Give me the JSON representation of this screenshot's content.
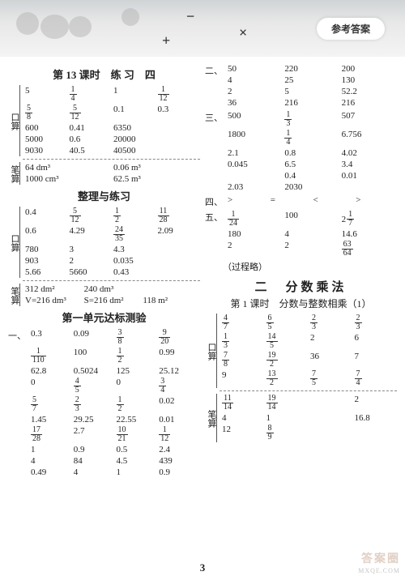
{
  "banner": {
    "pill": "参考答案",
    "ops": [
      "−",
      "+",
      "×",
      "÷"
    ]
  },
  "pagenum": "3",
  "watermark": "答案圈",
  "wm2": "MXQE.COM",
  "left": {
    "h1": "第 13 课时　练 习　四",
    "kou1": {
      "label": "口算",
      "rows": [
        [
          "5",
          "1/4",
          "1",
          "1/12"
        ],
        [
          "5/8",
          "5/12",
          "0.1",
          "0.3"
        ],
        [
          "600",
          "0.41",
          "6350",
          ""
        ],
        [
          "5000",
          "0.6",
          "20000",
          ""
        ],
        [
          "9030",
          "40.5",
          "40500",
          ""
        ]
      ]
    },
    "bi1": {
      "label": "笔算",
      "rows": [
        [
          "64 dm³",
          "0.06 m³"
        ],
        [
          "1000 cm³",
          "62.5 m³"
        ]
      ]
    },
    "h2": "整理与练习",
    "kou2": {
      "label": "口算",
      "rows": [
        [
          "0.4",
          "5/12",
          "1/2",
          "11/28"
        ],
        [
          "0.6",
          "4.29",
          "24/35",
          "2.09"
        ],
        [
          "780",
          "3",
          "4.3",
          ""
        ],
        [
          "903",
          "2",
          "0.035",
          ""
        ],
        [
          "5.66",
          "5660",
          "0.43",
          ""
        ]
      ]
    },
    "bi2": {
      "label": "笔算",
      "rows": [
        [
          "312 dm²",
          "240 dm³",
          ""
        ],
        [
          "V=216 dm³",
          "S=216 dm²",
          "118 m²"
        ]
      ]
    },
    "h3": "第一单元达标测验",
    "sec1": {
      "num": "一、",
      "rows": [
        [
          "0.3",
          "0.09",
          "3/8",
          "9/20"
        ],
        [
          "1/110",
          "100",
          "1/2",
          "0.99"
        ],
        [
          "62.8",
          "0.5024",
          "125",
          "25.12"
        ],
        [
          "0",
          "4/5",
          "0",
          "3/4"
        ],
        [
          "5/7",
          "2/3",
          "1/2",
          "0.02"
        ],
        [
          "1.45",
          "29.25",
          "22.55",
          "0.01"
        ],
        [
          "17/28",
          "2.7",
          "10/21",
          "1/12"
        ],
        [
          "1",
          "0.9",
          "0.5",
          "2.4"
        ],
        [
          "4",
          "84",
          "4.5",
          "439"
        ],
        [
          "0.49",
          "4",
          "1",
          "0.9"
        ]
      ]
    }
  },
  "right": {
    "sec2": {
      "num": "二、",
      "rows": [
        [
          "50",
          "220",
          "200"
        ],
        [
          "4",
          "25",
          "130"
        ],
        [
          "2",
          "5",
          "52.2"
        ],
        [
          "36",
          "216",
          "216"
        ]
      ]
    },
    "sec3": {
      "num": "三、",
      "rows": [
        [
          "500",
          "1/3",
          "507"
        ],
        [
          "1800",
          "1/4",
          "6.756"
        ],
        [
          "2.1",
          "0.8",
          "4.02"
        ],
        [
          "0.045",
          "6.5",
          "3.4"
        ],
        [
          "",
          "0.4",
          "0.01"
        ],
        [
          "2.03",
          "2030",
          ""
        ]
      ]
    },
    "sec4": {
      "num": "四、",
      "rows": [
        [
          ">",
          "=",
          "<",
          ">"
        ]
      ]
    },
    "sec5": {
      "num": "五、",
      "rows": [
        [
          "1/24",
          "100",
          "2 1/7"
        ],
        [
          "180",
          "4",
          "14.6"
        ],
        [
          "2",
          "2",
          "63/64"
        ]
      ],
      "note": "（过程略）"
    },
    "bigh": "二　分数乘法",
    "sub": "第 1 课时　分数与整数相乘（1）",
    "kou": {
      "label": "口算",
      "rows": [
        [
          "4/7",
          "6/5",
          "2/3",
          "2/3"
        ],
        [
          "1/3",
          "14/5",
          "2",
          "6"
        ],
        [
          "7/8",
          "19/2",
          "36",
          "7"
        ],
        [
          "9",
          "13/2",
          "7/5",
          "7/4"
        ]
      ]
    },
    "bi": {
      "label": "笔算",
      "rows": [
        [
          "11/14",
          "19/14",
          "",
          "2"
        ],
        [
          "4",
          "1",
          "",
          "16.8"
        ],
        [
          "12",
          "8/9",
          "",
          ""
        ]
      ]
    }
  }
}
